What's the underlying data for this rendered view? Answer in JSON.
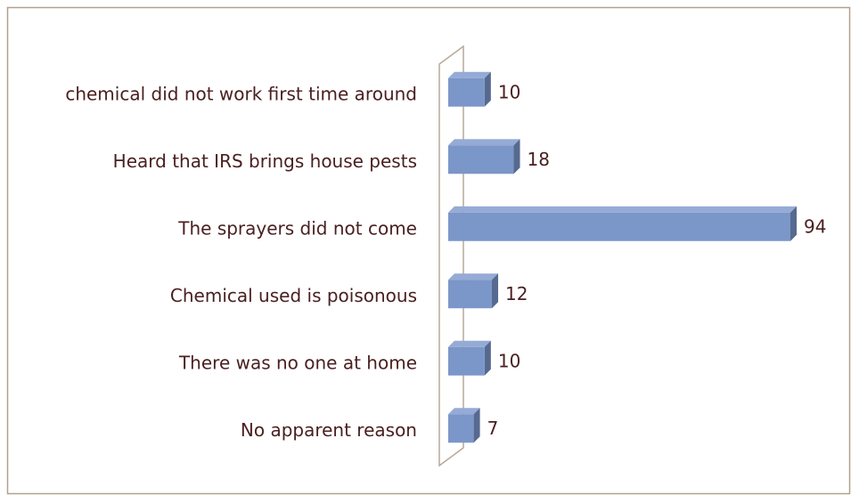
{
  "chart_data": {
    "type": "bar",
    "orientation": "horizontal",
    "categories": [
      "chemical did not work first time around",
      "Heard that IRS brings house pests",
      "The sprayers did not come",
      "Chemical used is poisonous",
      "There was no one at home",
      "No apparent reason"
    ],
    "values": [
      10,
      18,
      94,
      12,
      10,
      7
    ],
    "color": "#7b96c8"
  }
}
